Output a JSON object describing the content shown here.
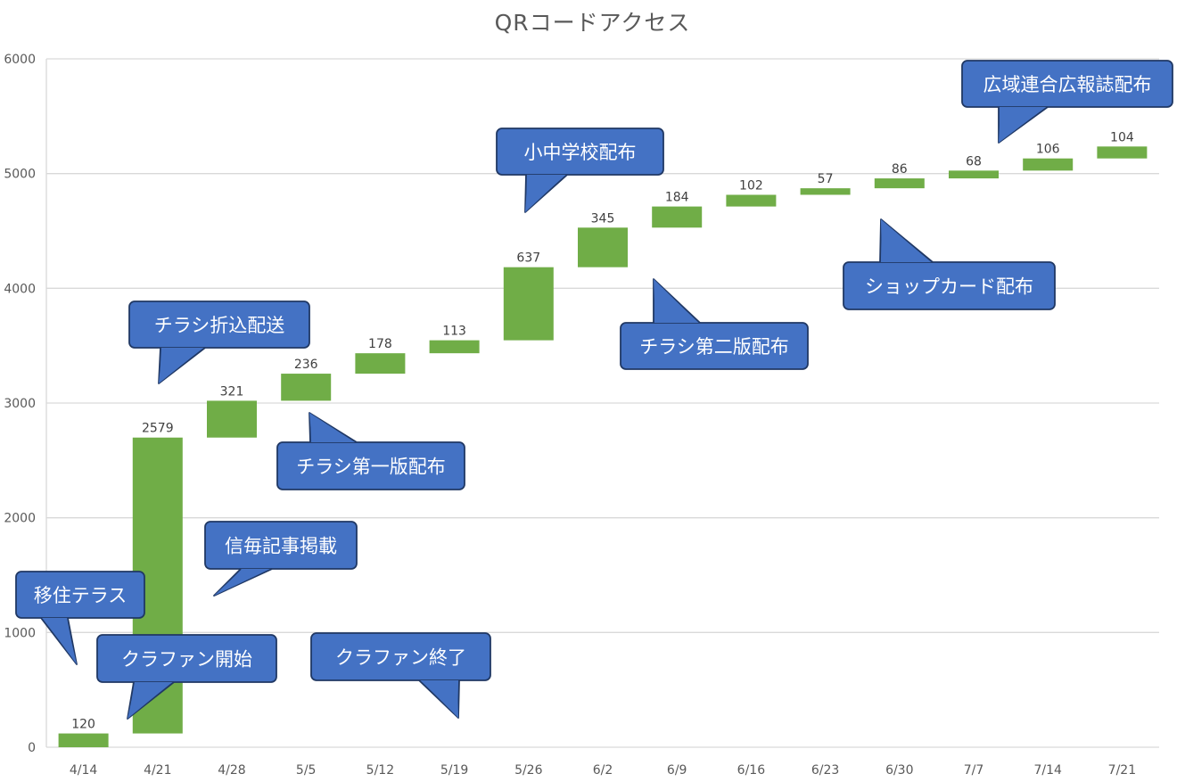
{
  "chart_data": {
    "type": "bar",
    "subtype": "waterfall",
    "title": "QRコードアクセス",
    "categories": [
      "4/14",
      "4/21",
      "4/28",
      "5/5",
      "5/12",
      "5/19",
      "5/26",
      "6/2",
      "6/9",
      "6/16",
      "6/23",
      "6/30",
      "7/7",
      "7/14",
      "7/21"
    ],
    "values": [
      120,
      2579,
      321,
      236,
      178,
      113,
      637,
      345,
      184,
      102,
      57,
      86,
      68,
      106,
      104
    ],
    "ylim": [
      0,
      6000
    ],
    "yticks": [
      0,
      1000,
      2000,
      3000,
      4000,
      5000,
      6000
    ],
    "grid": true,
    "legend": "none",
    "bar_color": "#70AD47",
    "annotations": [
      {
        "text": "移住テラス",
        "category": "4/14"
      },
      {
        "text": "クラファン開始",
        "category": "4/21"
      },
      {
        "text": "信毎記事掲載",
        "category": "4/21"
      },
      {
        "text": "チラシ折込配送",
        "category": "4/21"
      },
      {
        "text": "チラシ第一版配布",
        "category": "5/5"
      },
      {
        "text": "クラファン終了",
        "category": "5/19"
      },
      {
        "text": "小中学校配布",
        "category": "5/26"
      },
      {
        "text": "チラシ第二版配布",
        "category": "6/2"
      },
      {
        "text": "ショップカード配布",
        "category": "6/23"
      },
      {
        "text": "広域連合広報誌配布",
        "category": "7/7"
      }
    ]
  },
  "colors": {
    "callout_fill": "#4472C4",
    "callout_stroke": "#203864",
    "grid": "#D9D9D9",
    "axis_text": "#595959"
  }
}
